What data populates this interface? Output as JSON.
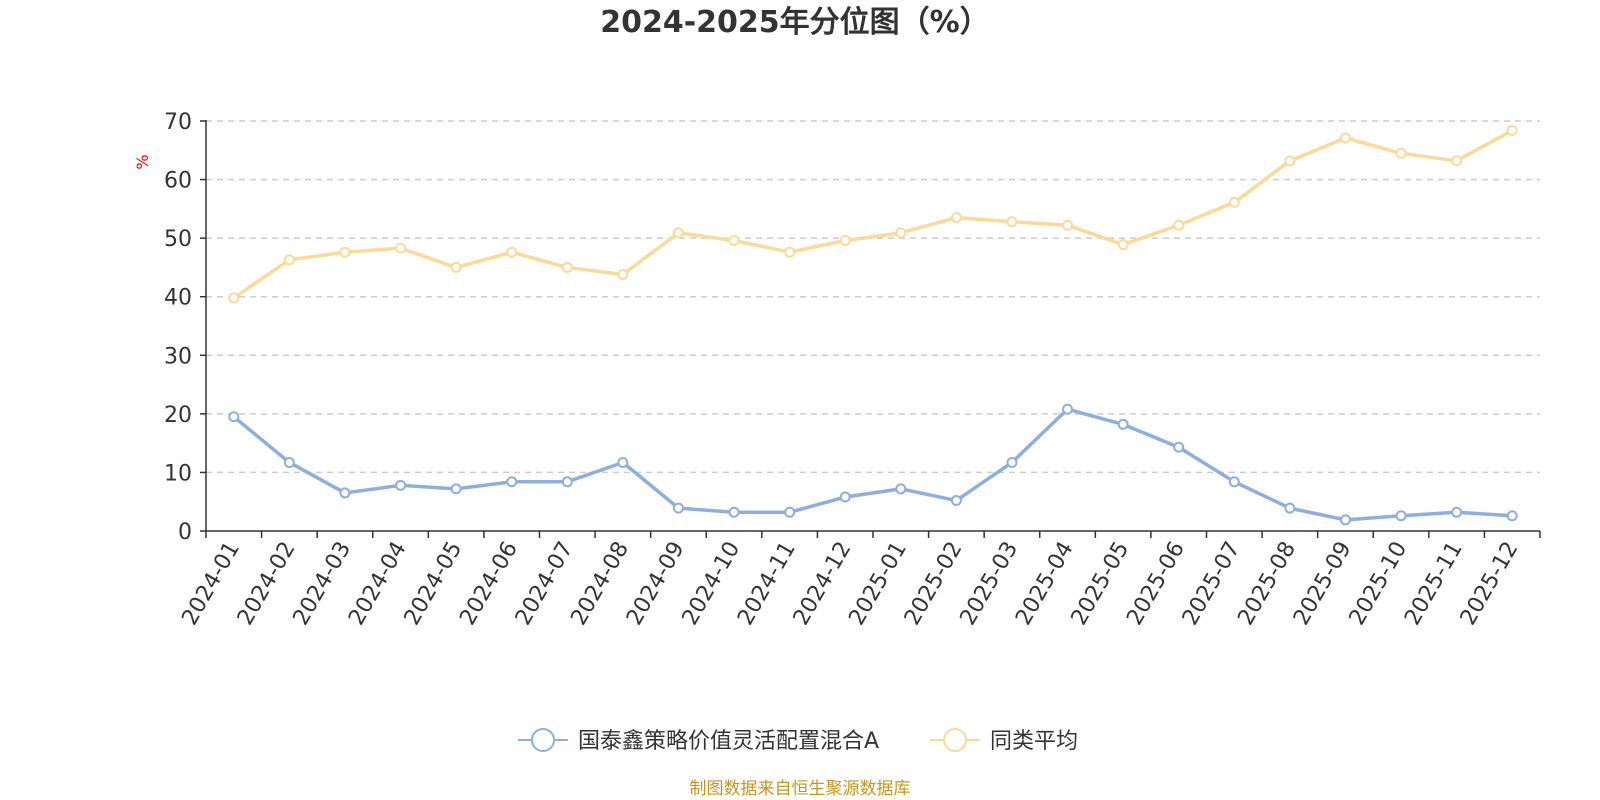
{
  "chart_data": {
    "type": "line",
    "title": "2024-2025年分位图（%）",
    "xlabel": "",
    "ylabel": "%",
    "ylim": [
      0,
      70
    ],
    "yticks": [
      0,
      10,
      20,
      30,
      40,
      50,
      60,
      70
    ],
    "grid": true,
    "legend_position": "bottom-center",
    "categories": [
      "2024-01",
      "2024-02",
      "2024-03",
      "2024-04",
      "2024-05",
      "2024-06",
      "2024-07",
      "2024-08",
      "2024-09",
      "2024-10",
      "2024-11",
      "2024-12",
      "2025-01",
      "2025-02",
      "2025-03",
      "2025-04",
      "2025-05",
      "2025-06",
      "2025-07",
      "2025-08",
      "2025-09",
      "2025-10",
      "2025-11",
      "2025-12"
    ],
    "series": [
      {
        "name": "国泰鑫策略价值灵活配置混合A",
        "color": "#8eaedb",
        "values": [
          19.5,
          11.7,
          6.5,
          7.8,
          7.2,
          8.4,
          8.4,
          11.7,
          3.9,
          3.2,
          3.2,
          5.8,
          7.2,
          5.2,
          11.7,
          20.8,
          18.2,
          14.3,
          8.4,
          3.9,
          1.9,
          2.6,
          3.2,
          2.6
        ]
      },
      {
        "name": "同类平均",
        "color": "#fbd99a",
        "values": [
          39.8,
          46.3,
          47.6,
          48.3,
          45.0,
          47.6,
          45.0,
          43.8,
          50.9,
          49.6,
          47.6,
          49.6,
          50.9,
          53.5,
          52.8,
          52.2,
          48.9,
          52.2,
          56.1,
          63.2,
          67.1,
          64.5,
          63.2,
          68.4
        ]
      }
    ]
  },
  "source_text": "制图数据来自恒生聚源数据库",
  "source_color": "#c8951e"
}
